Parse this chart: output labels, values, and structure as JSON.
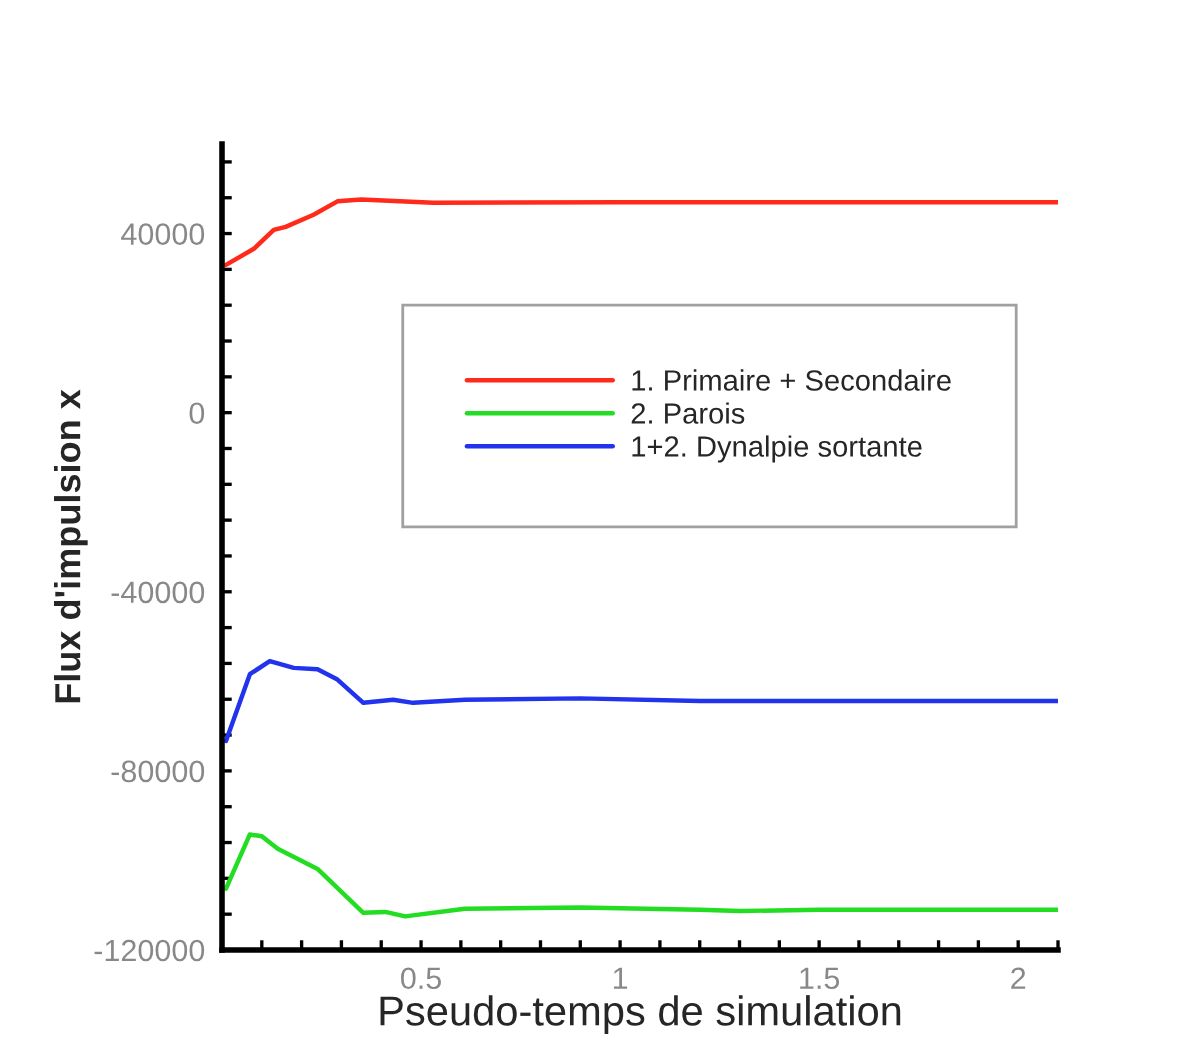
{
  "chart_data": {
    "type": "line",
    "xlabel": "Pseudo-temps de simulation",
    "ylabel": "Flux d'impulsion x",
    "xlim": [
      0,
      2.1
    ],
    "ylim": [
      -120000,
      60000
    ],
    "xticks": [
      {
        "value": 0.1,
        "label": null
      },
      {
        "value": 0.2,
        "label": null
      },
      {
        "value": 0.3,
        "label": null
      },
      {
        "value": 0.4,
        "label": null
      },
      0.5,
      {
        "value": 0.6,
        "label": null
      },
      {
        "value": 0.7,
        "label": null
      },
      {
        "value": 0.8,
        "label": null
      },
      {
        "value": 0.9,
        "label": null
      },
      1,
      {
        "value": 1.1,
        "label": null
      },
      {
        "value": 1.2,
        "label": null
      },
      {
        "value": 1.3,
        "label": null
      },
      {
        "value": 1.4,
        "label": null
      },
      1.5,
      {
        "value": 1.6,
        "label": null
      },
      {
        "value": 1.7,
        "label": null
      },
      {
        "value": 1.8,
        "label": null
      },
      {
        "value": 1.9,
        "label": null
      },
      2,
      {
        "value": 2.1,
        "label": null
      }
    ],
    "yticks": [
      -120000,
      {
        "value": -112000,
        "label": null
      },
      {
        "value": -104000,
        "label": null
      },
      {
        "value": -96000,
        "label": null
      },
      {
        "value": -88000,
        "label": null
      },
      -80000,
      {
        "value": -72000,
        "label": null
      },
      {
        "value": -64000,
        "label": null
      },
      {
        "value": -56000,
        "label": null
      },
      {
        "value": -48000,
        "label": null
      },
      -40000,
      {
        "value": -32000,
        "label": null
      },
      {
        "value": -24000,
        "label": null
      },
      {
        "value": -16000,
        "label": null
      },
      {
        "value": -8000,
        "label": null
      },
      0,
      {
        "value": 8000,
        "label": null
      },
      {
        "value": 16000,
        "label": null
      },
      {
        "value": 24000,
        "label": null
      },
      {
        "value": 32000,
        "label": null
      },
      40000,
      {
        "value": 48000,
        "label": null
      },
      {
        "value": 56000,
        "label": null
      }
    ],
    "grid": false,
    "legend": "top right",
    "marker": "none",
    "line_style": "solid",
    "series": [
      {
        "name": "1. Primaire + Secondaire",
        "color": "#ff2a1a",
        "x": [
          0.01,
          0.08,
          0.13,
          0.16,
          0.23,
          0.29,
          0.35,
          0.53,
          1.0,
          1.5,
          2.1
        ],
        "values": [
          33000,
          36600,
          40800,
          41500,
          44200,
          47200,
          47600,
          46900,
          47000,
          47000,
          47000
        ]
      },
      {
        "name": "2. Parois",
        "color": "#22dd22",
        "x": [
          0.01,
          0.07,
          0.1,
          0.14,
          0.24,
          0.355,
          0.41,
          0.46,
          0.61,
          0.9,
          1.2,
          1.3,
          1.5,
          2.1
        ],
        "values": [
          -106300,
          -94200,
          -94600,
          -97400,
          -101900,
          -111700,
          -111500,
          -112500,
          -110800,
          -110500,
          -111000,
          -111300,
          -111000,
          -111000
        ]
      },
      {
        "name": "1+2. Dynalpie sortante",
        "color": "#2233ee",
        "x": [
          0.01,
          0.07,
          0.12,
          0.18,
          0.24,
          0.29,
          0.355,
          0.43,
          0.48,
          0.61,
          0.9,
          1.2,
          1.5,
          2.1
        ],
        "values": [
          -73300,
          -58400,
          -55500,
          -57000,
          -57300,
          -59600,
          -64800,
          -64100,
          -64800,
          -64100,
          -63800,
          -64400,
          -64400,
          -64400
        ]
      }
    ]
  }
}
